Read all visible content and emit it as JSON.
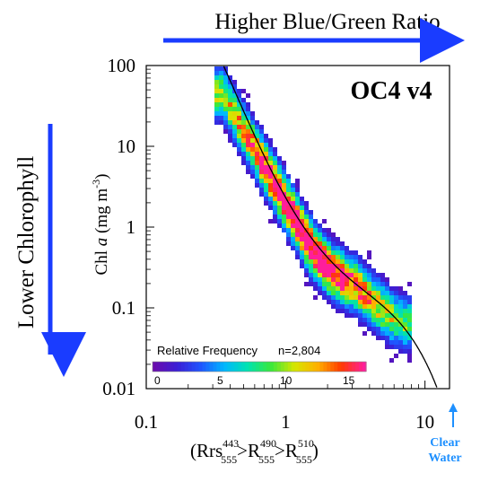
{
  "header": {
    "x_direction": "Higher Blue/Green Ratio",
    "y_direction": "Lower Chlorophyll"
  },
  "colors": {
    "direction_arrow": "#1a3cff",
    "clear_water": "#1e90ff",
    "model_curve": "#000000",
    "colormap": [
      "#6a0dad",
      "#3a1fd6",
      "#1f55ff",
      "#00b7ff",
      "#00e3b0",
      "#39e83c",
      "#d6e600",
      "#ffb000",
      "#ff3a00",
      "#ff1e9a"
    ]
  },
  "chart_data": {
    "type": "heatmap",
    "title": "OC4 v4",
    "xlabel": {
      "prefix": "(Rrs",
      "b1_sup": "443",
      "b1_sub": "555",
      "b2_base": ">R",
      "b2_sup": "490",
      "b2_sub": "555",
      "b3_base": ">R",
      "b3_sup": "510",
      "b3_sub": "555",
      "suffix": ")"
    },
    "ylabel": {
      "pre": "Chl ",
      "italic": "a",
      "post": " (mg m",
      "sup": "-3",
      "close": ")"
    },
    "x_scale": "log",
    "y_scale": "log",
    "xlim": [
      0.1,
      15
    ],
    "ylim": [
      0.01,
      100
    ],
    "x_ticks": [
      "0.1",
      "1",
      "10"
    ],
    "x_tick_values": [
      0.1,
      1,
      10
    ],
    "y_ticks": [
      "100",
      "10",
      "1",
      "0.1",
      "0.01"
    ],
    "y_tick_values": [
      100,
      10,
      1,
      0.1,
      0.01
    ],
    "colorbar": {
      "label": "Relative Frequency",
      "count_label": "n=2,804",
      "ticks": [
        "0",
        "5",
        "10",
        "15"
      ],
      "tick_values": [
        0,
        5,
        10,
        15
      ],
      "max": 17
    },
    "annotation": {
      "line1": "Clear",
      "line2": "Water"
    },
    "model": {
      "name": "OC4 v4",
      "a": [
        0.366,
        -3.067,
        1.93,
        0.649,
        -1.532
      ]
    },
    "density_ridge": {
      "log10_x": [
        -0.45,
        -0.3,
        -0.15,
        0.0,
        0.1,
        0.2,
        0.35,
        0.5,
        0.65,
        0.75,
        0.85
      ],
      "log10_y": [
        1.65,
        1.2,
        0.75,
        0.3,
        0.0,
        -0.3,
        -0.58,
        -0.72,
        -0.95,
        -1.1,
        -1.2
      ]
    },
    "density_halfwidth_log10_y": 0.35,
    "bin_count": 2804,
    "grid": false
  }
}
